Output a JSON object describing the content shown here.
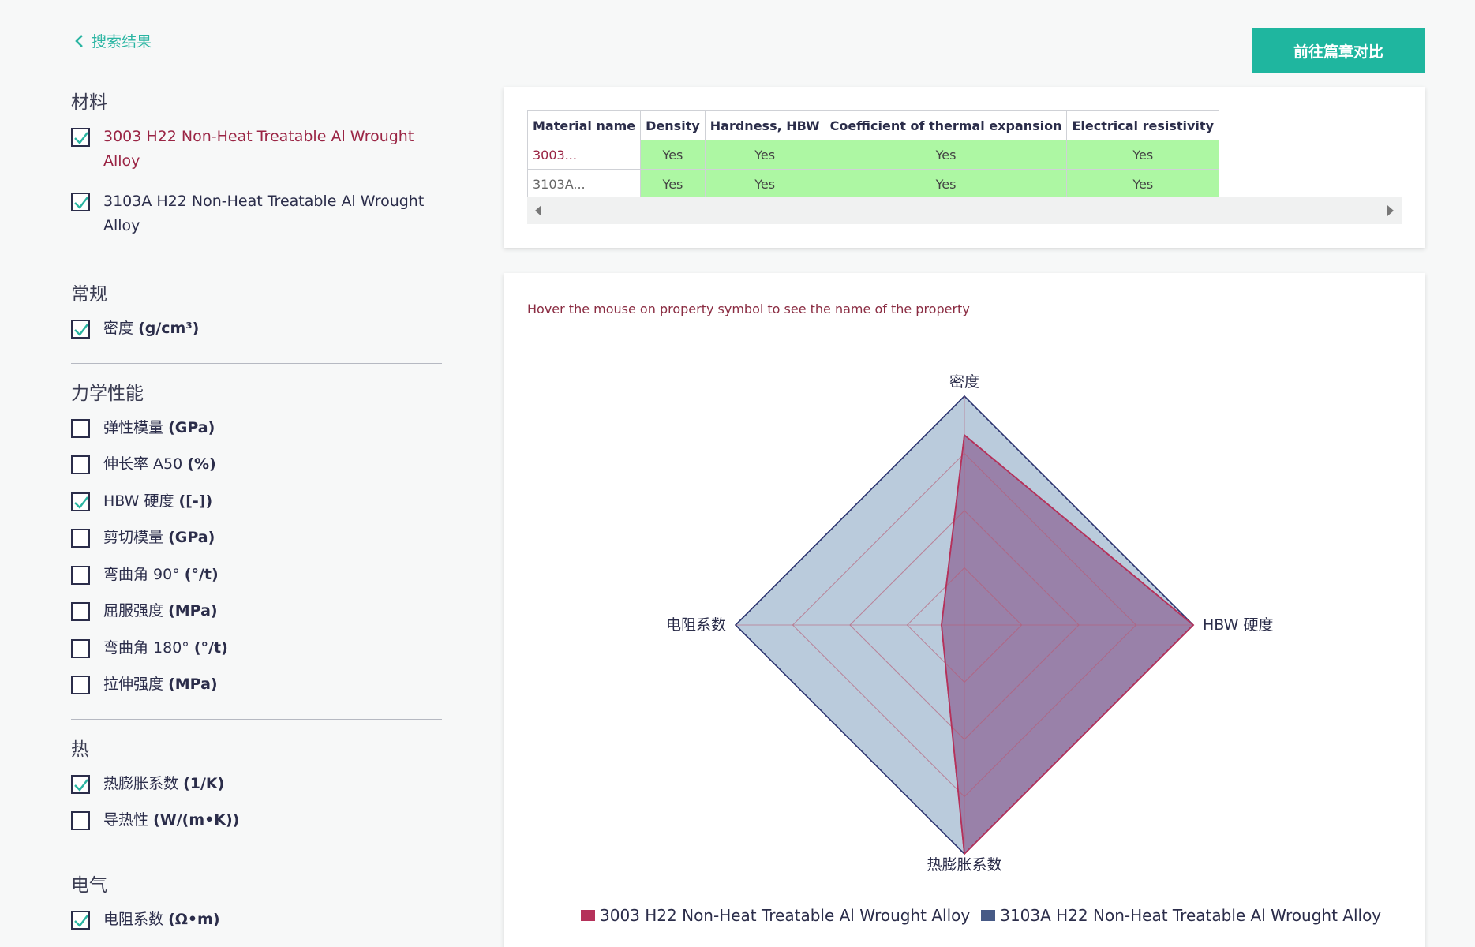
{
  "header": {
    "back_label": "搜索结果",
    "compare_button": "前往篇章对比"
  },
  "sidebar": {
    "materials_title": "材料",
    "materials": [
      {
        "label": "3003 H22 Non-Heat Treatable Al Wrought Alloy",
        "checked": true,
        "highlight": true
      },
      {
        "label": "3103A H22 Non-Heat Treatable Al Wrought Alloy",
        "checked": true,
        "highlight": false
      }
    ],
    "general_title": "常规",
    "general": [
      {
        "name": "密度",
        "unit": "(g/cm³)",
        "checked": true
      }
    ],
    "mech_title": "力学性能",
    "mech": [
      {
        "name": "弹性模量",
        "unit": "(GPa)",
        "checked": false
      },
      {
        "name": "伸长率 A50",
        "unit": "(%)",
        "checked": false
      },
      {
        "name": "HBW 硬度",
        "unit": "([-])",
        "checked": true
      },
      {
        "name": "剪切模量",
        "unit": "(GPa)",
        "checked": false
      },
      {
        "name": "弯曲角 90°",
        "unit": "(°/t)",
        "checked": false
      },
      {
        "name": "屈服强度",
        "unit": "(MPa)",
        "checked": false
      },
      {
        "name": "弯曲角 180°",
        "unit": "(°/t)",
        "checked": false
      },
      {
        "name": "拉伸强度",
        "unit": "(MPa)",
        "checked": false
      }
    ],
    "thermal_title": "热",
    "thermal": [
      {
        "name": "热膨胀系数",
        "unit": "(1/K)",
        "checked": true
      },
      {
        "name": "导热性",
        "unit": "(W/(m•K))",
        "checked": false
      }
    ],
    "electrical_title": "电气",
    "electrical": [
      {
        "name": "电阻系数",
        "unit": "(Ω•m)",
        "checked": true
      }
    ]
  },
  "table": {
    "headers": [
      "Material name",
      "Density",
      "Hardness, HBW",
      "Coefficient of thermal expansion",
      "Electrical resistivity"
    ],
    "rows": [
      {
        "name": "3003...",
        "cells": [
          "Yes",
          "Yes",
          "Yes",
          "Yes"
        ]
      },
      {
        "name": "3103A...",
        "cells": [
          "Yes",
          "Yes",
          "Yes",
          "Yes"
        ]
      }
    ]
  },
  "chart": {
    "hint": "Hover the mouse on property symbol to see the name of the property"
  },
  "colors": {
    "accent": "#1fb69f",
    "series1": "#b5315a",
    "series2": "#475a86",
    "yes_bg": "#adf7a3"
  },
  "chart_data": {
    "type": "radar",
    "axes": [
      "密度",
      "HBW 硬度",
      "热膨胀系数",
      "电阻系数"
    ],
    "series": [
      {
        "name": "3003 H22 Non-Heat Treatable Al Wrought Alloy",
        "values": [
          0.83,
          1.0,
          1.0,
          0.1
        ],
        "color": "#b5315a"
      },
      {
        "name": "3103A H22 Non-Heat Treatable Al Wrought Alloy",
        "values": [
          1.0,
          1.0,
          1.0,
          1.0
        ],
        "color": "#475a86"
      }
    ],
    "max": 1.0,
    "rings": 4,
    "legend_position": "bottom"
  }
}
